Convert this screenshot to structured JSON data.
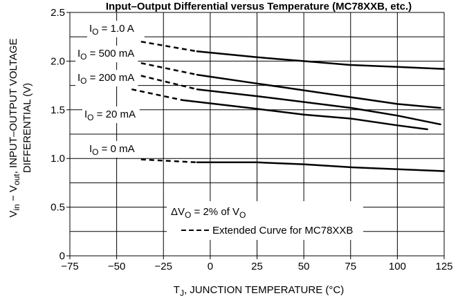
{
  "chart_data": {
    "type": "line",
    "title": "Input–Output Differential versus Temperature (MC78XXB, etc.)",
    "xlabel_parts": [
      "T",
      "J",
      ", JUNCTION TEMPERATURE (°C)"
    ],
    "ylabel_line1_parts": [
      "V",
      "in",
      " − V",
      "out",
      ", INPUT–OUTPUT VOLTAGE"
    ],
    "ylabel_line2": "DIFFERENTIAL (V)",
    "xlim": [
      -75,
      125
    ],
    "ylim": [
      0,
      2.5
    ],
    "xticks": [
      "−75",
      "−50",
      "−25",
      "0",
      "25",
      "50",
      "75",
      "100",
      "125"
    ],
    "xtick_values": [
      -75,
      -50,
      -25,
      0,
      25,
      50,
      75,
      100,
      125
    ],
    "yticks": [
      "0",
      "0.5",
      "1.0",
      "1.5",
      "2.0",
      "2.5"
    ],
    "ytick_values": [
      0,
      0.5,
      1.0,
      1.5,
      2.0,
      2.5
    ],
    "grid": true,
    "series": [
      {
        "name": "I_O = 500 mA",
        "label_parts": [
          "I",
          "O",
          " = 500 mA"
        ],
        "dashed": [
          [
            -37,
            2.2
          ],
          [
            -7,
            2.1
          ]
        ],
        "solid": [
          [
            -7,
            2.1
          ],
          [
            25,
            2.04
          ],
          [
            50,
            2.0
          ],
          [
            75,
            1.96
          ],
          [
            100,
            1.94
          ],
          [
            125,
            1.92
          ]
        ]
      },
      {
        "name": "I_O = 200 mA",
        "label_parts": [
          "I",
          "O",
          " = 200 mA"
        ],
        "dashed": [
          [
            -37,
            1.98
          ],
          [
            -7,
            1.86
          ]
        ],
        "solid": [
          [
            -7,
            1.86
          ],
          [
            25,
            1.77
          ],
          [
            50,
            1.7
          ],
          [
            75,
            1.63
          ],
          [
            100,
            1.56
          ],
          [
            123,
            1.52
          ]
        ]
      },
      {
        "name": "I_O = 1.0 A",
        "label_parts": [
          "I",
          "O",
          " = 1.0 A"
        ],
        "dashed": [
          [
            -37,
            1.85
          ],
          [
            -7,
            1.71
          ]
        ],
        "solid": [
          [
            -7,
            1.71
          ],
          [
            25,
            1.64
          ],
          [
            50,
            1.58
          ],
          [
            75,
            1.52
          ],
          [
            100,
            1.44
          ],
          [
            123,
            1.35
          ]
        ]
      },
      {
        "name": "I_O = 20 mA",
        "label_parts": [
          "I",
          "O",
          " = 20 mA"
        ],
        "dashed": [
          [
            -42,
            1.71
          ],
          [
            -15,
            1.6
          ]
        ],
        "solid": [
          [
            -15,
            1.6
          ],
          [
            25,
            1.51
          ],
          [
            50,
            1.45
          ],
          [
            75,
            1.41
          ],
          [
            100,
            1.34
          ],
          [
            116,
            1.3
          ]
        ]
      },
      {
        "name": "I_O = 0 mA",
        "label_parts": [
          "I",
          "O",
          " = 0 mA"
        ],
        "dashed": [
          [
            -37,
            0.99
          ],
          [
            -7,
            0.96
          ]
        ],
        "solid": [
          [
            -7,
            0.96
          ],
          [
            25,
            0.96
          ],
          [
            50,
            0.94
          ],
          [
            75,
            0.91
          ],
          [
            100,
            0.89
          ],
          [
            125,
            0.87
          ]
        ]
      }
    ],
    "legend_parts": [
      "ΔV",
      "O",
      " = 2% of V",
      "O"
    ],
    "legend_entry": "Extended Curve for MC78XXB"
  }
}
